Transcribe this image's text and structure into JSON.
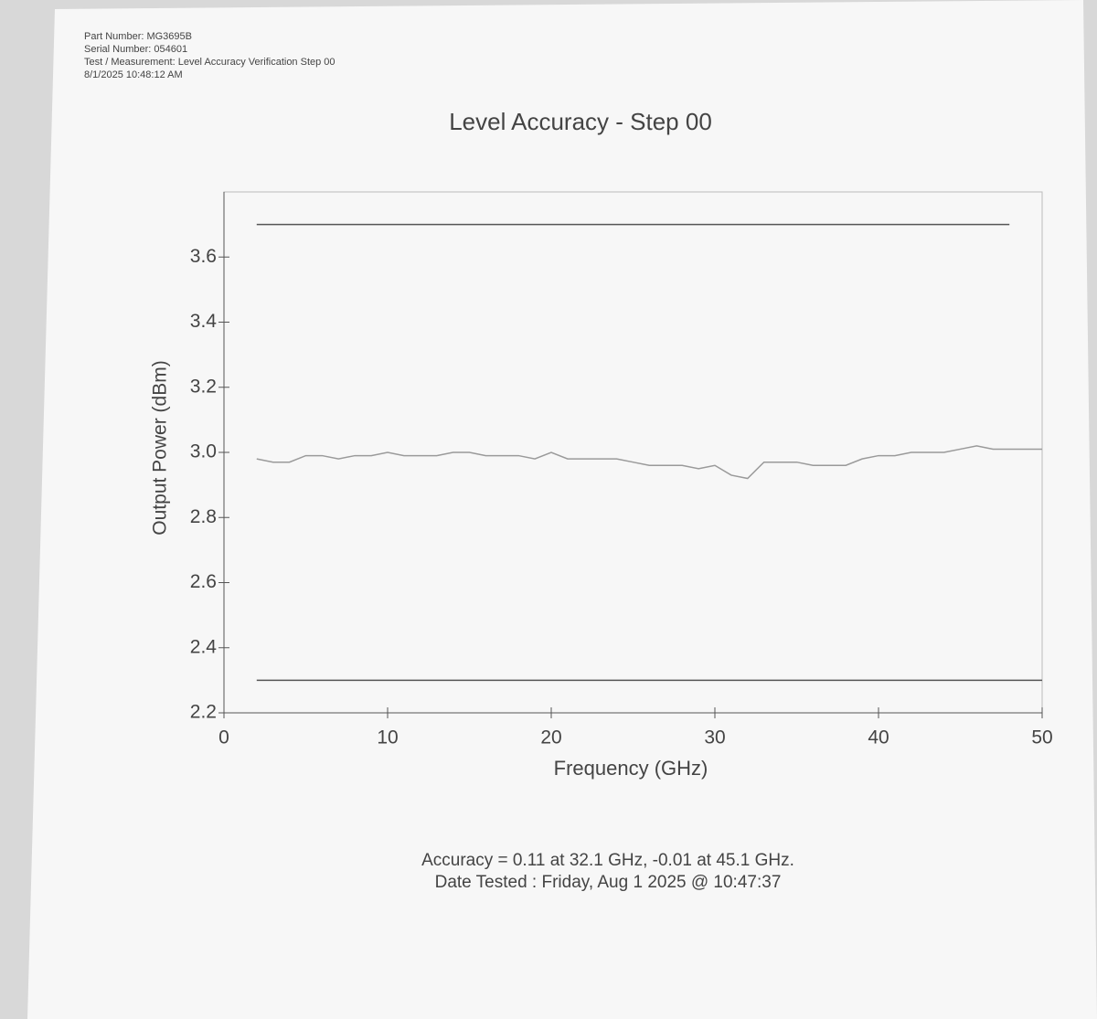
{
  "header": {
    "lines": [
      "Part Number: MG3695B",
      "Serial Number: 054601",
      "Test / Measurement: Level Accuracy Verification Step 00",
      "8/1/2025 10:48:12 AM"
    ]
  },
  "chart_data": {
    "type": "line",
    "title": "Level Accuracy - Step 00",
    "x_label": "Frequency (GHz)",
    "y_label": "Output Power (dBm)",
    "xlim": [
      0,
      50
    ],
    "xticks": [
      0,
      10,
      20,
      30,
      40,
      50
    ],
    "ylim": [
      2.2,
      3.8
    ],
    "yticks": [
      2.2,
      2.4,
      2.6,
      2.8,
      {
        "value": 3,
        "label": "3.0"
      },
      3.2,
      3.4,
      3.6
    ],
    "series": [
      {
        "color": "#555555",
        "x": [
          2,
          48
        ],
        "values": [
          3.7,
          3.7
        ]
      },
      {
        "color": "#555555",
        "x": [
          2,
          50
        ],
        "values": [
          2.3,
          2.3
        ]
      },
      {
        "color": "#9a9a9a",
        "x": [
          2,
          3,
          4,
          5,
          6,
          7,
          8,
          9,
          10,
          11,
          12,
          13,
          14,
          15,
          16,
          17,
          18,
          19,
          20,
          21,
          22,
          23,
          24,
          25,
          26,
          27,
          28,
          29,
          30,
          31,
          32,
          33,
          34,
          35,
          36,
          37,
          38,
          39,
          40,
          41,
          42,
          43,
          44,
          45,
          46,
          47,
          48,
          49,
          50
        ],
        "values": [
          2.98,
          2.97,
          2.97,
          2.99,
          2.99,
          2.98,
          2.99,
          2.99,
          3.0,
          2.99,
          2.99,
          2.99,
          3.0,
          3.0,
          2.99,
          2.99,
          2.99,
          2.98,
          3.0,
          2.98,
          2.98,
          2.98,
          2.98,
          2.97,
          2.96,
          2.96,
          2.96,
          2.95,
          2.96,
          2.93,
          2.92,
          2.97,
          2.97,
          2.97,
          2.96,
          2.96,
          2.96,
          2.98,
          2.99,
          2.99,
          3.0,
          3.0,
          3.0,
          3.01,
          3.02,
          3.01,
          3.01,
          3.01,
          3.01
        ]
      }
    ]
  },
  "footer": {
    "lines": [
      "Accuracy = 0.11 at 32.1 GHz, -0.01 at 45.1 GHz.",
      "Date Tested : Friday, Aug 1 2025 @ 10:47:37"
    ]
  }
}
